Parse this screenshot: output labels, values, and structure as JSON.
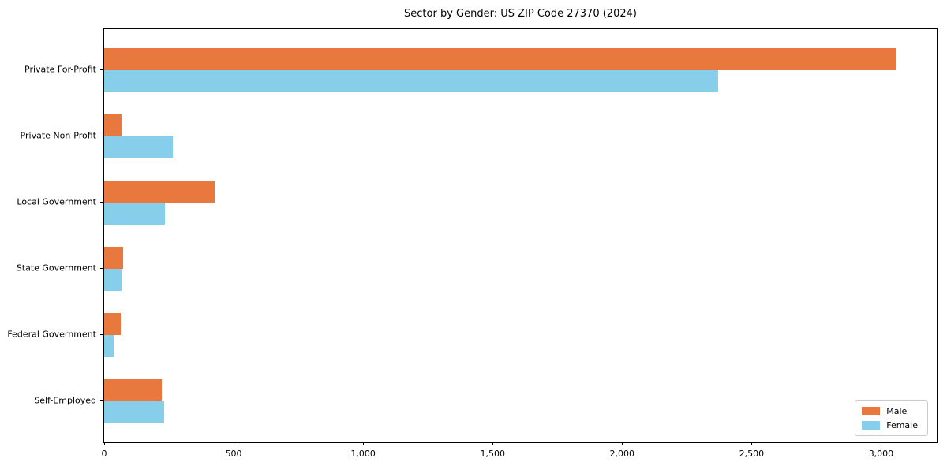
{
  "chart_data": {
    "type": "bar",
    "orientation": "horizontal",
    "title": "Sector by Gender: US ZIP Code 27370 (2024)",
    "categories": [
      "Private For-Profit",
      "Private Non-Profit",
      "Local Government",
      "State Government",
      "Federal Government",
      "Self-Employed"
    ],
    "series": [
      {
        "name": "Male",
        "color": "#e8783d",
        "values": [
          3060,
          68,
          426,
          74,
          64,
          222
        ]
      },
      {
        "name": "Female",
        "color": "#87ceeb",
        "values": [
          2370,
          266,
          234,
          68,
          36,
          232
        ]
      }
    ],
    "xlabel": "",
    "ylabel": "",
    "xlim": [
      0,
      3215
    ],
    "xticks": [
      0,
      500,
      1000,
      1500,
      2000,
      2500,
      3000
    ],
    "xtick_labels": [
      "0",
      "500",
      "1,000",
      "1,500",
      "2,000",
      "2,500",
      "3,000"
    ],
    "grid": false,
    "legend": {
      "position": "lower right",
      "labels": [
        "Male",
        "Female"
      ]
    },
    "colors": {
      "background": "#ffffff",
      "spine": "#000000",
      "text": "#000000",
      "legend_border": "#cccccc"
    }
  }
}
